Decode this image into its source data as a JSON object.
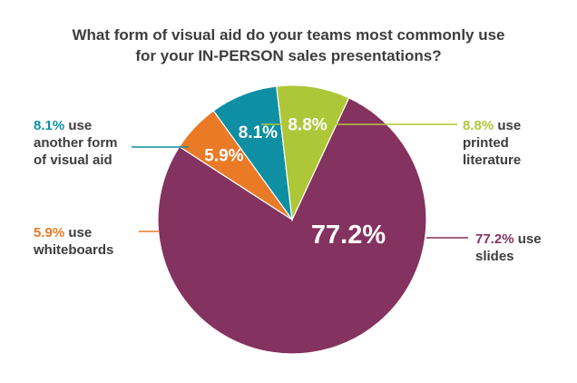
{
  "chart_data": {
    "type": "pie",
    "title_lines": [
      "What form of visual aid do your teams most commonly use",
      "for your IN-PERSON sales presentations?"
    ],
    "slices": [
      {
        "value": 77.2,
        "label": "77.2%",
        "color": "#84325f",
        "callout_pct": "77.2%",
        "callout_lines": [
          " use",
          "slides"
        ]
      },
      {
        "value": 5.9,
        "label": "5.9%",
        "color": "#ea7a26",
        "callout_pct": "5.9%",
        "callout_lines": [
          " use",
          "whiteboards"
        ]
      },
      {
        "value": 8.1,
        "label": "8.1%",
        "color": "#0f8fa4",
        "callout_pct": "8.1%",
        "callout_lines": [
          " use",
          "another form",
          "of visual aid"
        ]
      },
      {
        "value": 8.8,
        "label": "8.8%",
        "color": "#aec739",
        "callout_pct": "8.8%",
        "callout_lines": [
          " use",
          "printed",
          "literature"
        ]
      }
    ],
    "text_color": "#3d3d3d"
  }
}
